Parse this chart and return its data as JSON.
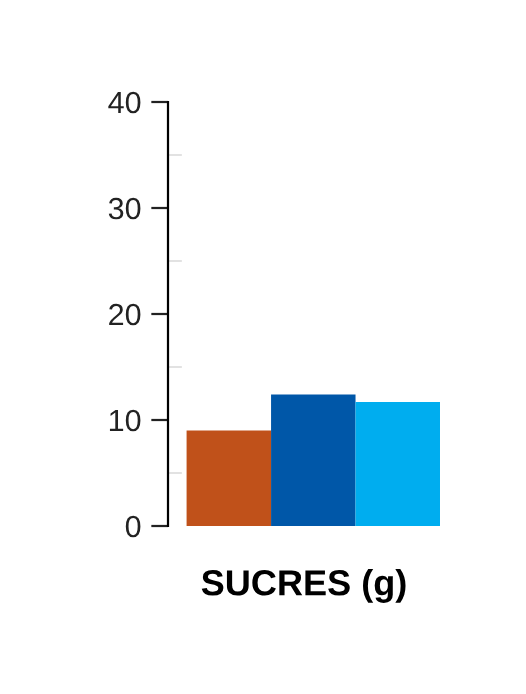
{
  "chart_data": {
    "type": "bar",
    "xlabel": "SUCRES (g)",
    "categories": [
      null,
      null,
      null
    ],
    "values": [
      9,
      12.4,
      11.7
    ],
    "colors": [
      "#c0511a",
      "#0057a8",
      "#00adef"
    ],
    "ylim": [
      0,
      40
    ],
    "yticks": [
      0,
      {
        "value": 5,
        "label": null
      },
      10,
      {
        "value": 15,
        "label": null
      },
      20,
      {
        "value": 25,
        "label": null
      },
      30,
      {
        "value": 35,
        "label": null
      },
      40
    ],
    "grid": false,
    "legend": false
  }
}
